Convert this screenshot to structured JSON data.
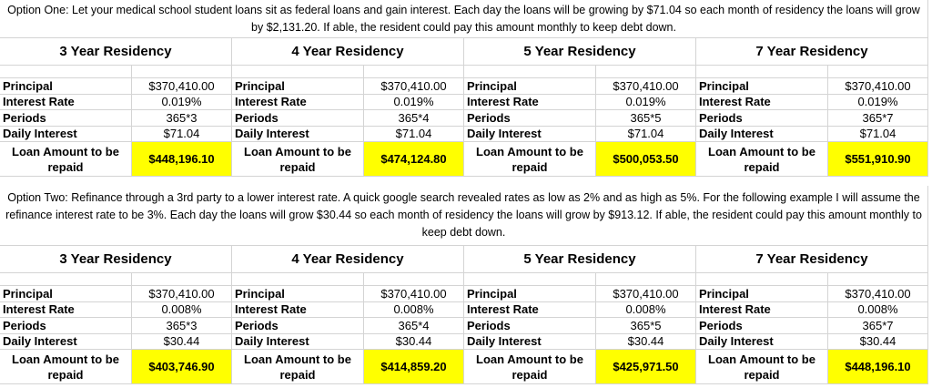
{
  "options": [
    {
      "description": "Option One: Let your medical school student loans sit as federal loans and gain interest. Each day the loans will be growing by $71.04 so each month of residency the loans will grow by $2,131.20. If able, the resident could pay this amount monthly to keep debt down.",
      "blocks": [
        {
          "title": "3 Year Residency",
          "rows": [
            {
              "label": "Principal",
              "value": "$370,410.00"
            },
            {
              "label": "Interest Rate",
              "value": "0.019%"
            },
            {
              "label": "Periods",
              "value": "365*3"
            },
            {
              "label": "Daily Interest",
              "value": "$71.04"
            }
          ],
          "total_label": "Loan Amount to be repaid",
          "total": "$448,196.10"
        },
        {
          "title": "4 Year Residency",
          "rows": [
            {
              "label": "Principal",
              "value": "$370,410.00"
            },
            {
              "label": "Interest Rate",
              "value": "0.019%"
            },
            {
              "label": "Periods",
              "value": "365*4"
            },
            {
              "label": "Daily Interest",
              "value": "$71.04"
            }
          ],
          "total_label": "Loan Amount to be repaid",
          "total": "$474,124.80"
        },
        {
          "title": "5 Year Residency",
          "rows": [
            {
              "label": "Principal",
              "value": "$370,410.00"
            },
            {
              "label": "Interest Rate",
              "value": "0.019%"
            },
            {
              "label": "Periods",
              "value": "365*5"
            },
            {
              "label": "Daily Interest",
              "value": "$71.04"
            }
          ],
          "total_label": "Loan Amount to be repaid",
          "total": "$500,053.50"
        },
        {
          "title": "7 Year Residency",
          "rows": [
            {
              "label": "Principal",
              "value": "$370,410.00"
            },
            {
              "label": "Interest Rate",
              "value": "0.019%"
            },
            {
              "label": "Periods",
              "value": "365*7"
            },
            {
              "label": "Daily Interest",
              "value": "$71.04"
            }
          ],
          "total_label": "Loan Amount to be repaid",
          "total": "$551,910.90"
        }
      ]
    },
    {
      "description": "Option Two: Refinance through a 3rd party to a lower interest rate. A quick google search revealed rates as low as 2% and as high as 5%. For the following example I will assume the refinance interest rate to be 3%. Each day the loans will grow $30.44 so each month of residency the loans will grow by $913.12. If able, the resident could pay this amount monthly to keep debt down.",
      "blocks": [
        {
          "title": "3 Year Residency",
          "rows": [
            {
              "label": "Principal",
              "value": "$370,410.00"
            },
            {
              "label": "Interest Rate",
              "value": "0.008%"
            },
            {
              "label": "Periods",
              "value": "365*3"
            },
            {
              "label": "Daily Interest",
              "value": "$30.44"
            }
          ],
          "total_label": "Loan Amount to be repaid",
          "total": "$403,746.90"
        },
        {
          "title": "4 Year Residency",
          "rows": [
            {
              "label": "Principal",
              "value": "$370,410.00"
            },
            {
              "label": "Interest Rate",
              "value": "0.008%"
            },
            {
              "label": "Periods",
              "value": "365*4"
            },
            {
              "label": "Daily Interest",
              "value": "$30.44"
            }
          ],
          "total_label": "Loan Amount to be repaid",
          "total": "$414,859.20"
        },
        {
          "title": "5 Year Residency",
          "rows": [
            {
              "label": "Principal",
              "value": "$370,410.00"
            },
            {
              "label": "Interest Rate",
              "value": "0.008%"
            },
            {
              "label": "Periods",
              "value": "365*5"
            },
            {
              "label": "Daily Interest",
              "value": "$30.44"
            }
          ],
          "total_label": "Loan Amount to be repaid",
          "total": "$425,971.50"
        },
        {
          "title": "7 Year Residency",
          "rows": [
            {
              "label": "Principal",
              "value": "$370,410.00"
            },
            {
              "label": "Interest Rate",
              "value": "0.008%"
            },
            {
              "label": "Periods",
              "value": "365*7"
            },
            {
              "label": "Daily Interest",
              "value": "$30.44"
            }
          ],
          "total_label": "Loan Amount to be repaid",
          "total": "$448,196.10"
        }
      ]
    }
  ]
}
